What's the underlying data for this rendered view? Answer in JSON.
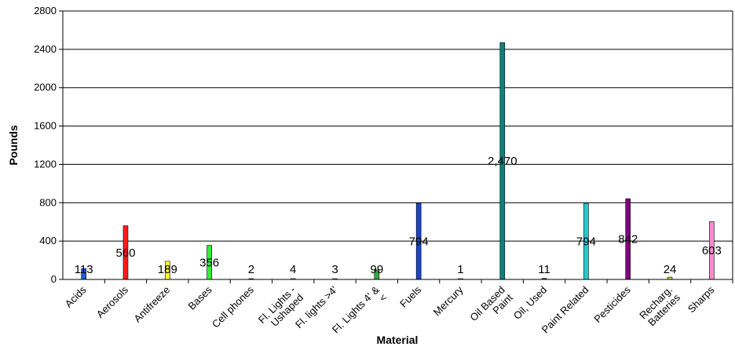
{
  "chart_data": {
    "type": "bar",
    "title": "",
    "xlabel": "Material",
    "ylabel": "Pounds",
    "ylim": [
      0,
      2800
    ],
    "yticks": [
      "0",
      "400",
      "800",
      "1200",
      "1600",
      "2000",
      "2400",
      "2800"
    ],
    "grid": true,
    "categories": [
      [
        "Acids"
      ],
      [
        "Aerosols"
      ],
      [
        "Antifreeze"
      ],
      [
        "Bases"
      ],
      [
        "Cell phones"
      ],
      [
        "Fl. Lights -",
        "Ushaped"
      ],
      [
        "Fl. lights >4'"
      ],
      [
        "Fl. Lights 4' &",
        "<"
      ],
      [
        "Fuels"
      ],
      [
        "Mercury"
      ],
      [
        "Oil Based",
        "Paint"
      ],
      [
        "Oil, Used"
      ],
      [
        "Paint Related"
      ],
      [
        "Pesticides"
      ],
      [
        "Recharg.",
        "Batteries"
      ],
      [
        "Sharps"
      ]
    ],
    "values": [
      113,
      560,
      189,
      356,
      2,
      4,
      3,
      99,
      794,
      1,
      2470,
      11,
      794,
      842,
      24,
      603
    ],
    "data_labels": [
      "113",
      "560",
      "189",
      "356",
      "2",
      "4",
      "3",
      "99",
      "794",
      "1",
      "2,470",
      "11",
      "794",
      "842",
      "24",
      "603"
    ],
    "colors": [
      "#1f5fd6",
      "#ff1a1a",
      "#ffff33",
      "#33ee33",
      "#3f3f7f",
      "#66ccff",
      "#9999ff",
      "#33aa33",
      "#1a44cc",
      "#cccc66",
      "#117f7f",
      "#2f2f2f",
      "#22cccc",
      "#800080",
      "#cccc33",
      "#ff88cc"
    ]
  }
}
